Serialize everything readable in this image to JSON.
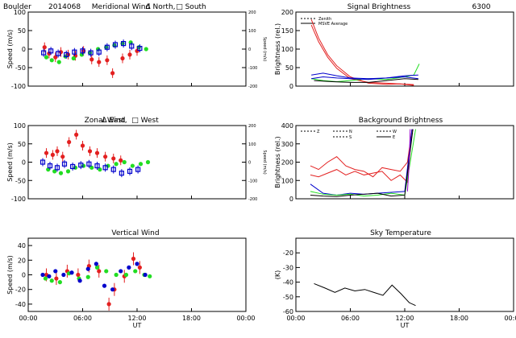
{
  "header": {
    "station": "Boulder",
    "date": "2014068"
  },
  "colors": {
    "red": "#e32020",
    "green": "#22dd22",
    "blue": "#0000cc",
    "purple": "#9900cc",
    "black": "#000000"
  },
  "chart_data": [
    {
      "id": "meridional",
      "type": "scatter",
      "title": "Meridional Wind",
      "legend": [
        "Δ North,",
        "□ South"
      ],
      "ylabel": "Speed (m/s)",
      "ylabel_right": "Speed (m/s)",
      "xlim": [
        0,
        24
      ],
      "ylim": [
        -100,
        100
      ],
      "yticks": [
        -100,
        -50,
        0,
        50,
        100
      ],
      "yticks_right": [
        "200",
        "100",
        "0",
        "-100",
        "-200"
      ],
      "xticks": [
        "00:00",
        "06:00",
        "12:00",
        "18:00",
        "00:00"
      ],
      "series": [
        {
          "color": "red",
          "marker": "circle",
          "err": 6,
          "x": [
            1.8,
            2.3,
            3.0,
            3.6,
            4.4,
            5.2,
            6.1,
            7.0,
            7.8,
            8.7,
            9.3,
            10.4,
            11.2,
            12.0
          ],
          "y": [
            5,
            -12,
            -22,
            -8,
            -15,
            -18,
            -5,
            -28,
            -35,
            -30,
            -65,
            -25,
            -15,
            -5
          ]
        },
        {
          "color": "green",
          "marker": "circle",
          "err": 0,
          "x": [
            2.0,
            2.6,
            3.4,
            4.1,
            5.0,
            5.9,
            6.8,
            7.7,
            8.6,
            9.5,
            10.4,
            11.3,
            12.2,
            13.0
          ],
          "y": [
            -22,
            -30,
            -35,
            -20,
            -25,
            -15,
            -10,
            0,
            5,
            10,
            15,
            18,
            5,
            0
          ]
        },
        {
          "color": "blue",
          "marker": "square",
          "err": 5,
          "x": [
            1.7,
            2.5,
            3.3,
            4.2,
            5.1,
            6.0,
            6.9,
            7.8,
            8.7,
            9.6,
            10.5,
            11.4,
            12.3
          ],
          "y": [
            -10,
            -5,
            -12,
            -15,
            -8,
            -5,
            -10,
            -8,
            5,
            12,
            15,
            8,
            2
          ]
        }
      ]
    },
    {
      "id": "zonal",
      "type": "scatter",
      "title": "Zonal Wind",
      "legend": [
        "Δ East,",
        "□ West"
      ],
      "ylabel": "Speed (m/s)",
      "ylabel_right": "Speed (m/s)",
      "xlim": [
        0,
        24
      ],
      "ylim": [
        -100,
        100
      ],
      "yticks": [
        -100,
        -50,
        0,
        50,
        100
      ],
      "yticks_right": [
        "200",
        "100",
        "0",
        "-100",
        "-200"
      ],
      "xticks": [
        "00:00",
        "06:00",
        "12:00",
        "18:00",
        "00:00"
      ],
      "series": [
        {
          "color": "red",
          "marker": "circle",
          "err": 6,
          "x": [
            2.0,
            2.7,
            3.2,
            3.8,
            4.5,
            5.3,
            6.0,
            6.8,
            7.6,
            8.5,
            9.4,
            10.2
          ],
          "y": [
            25,
            20,
            30,
            15,
            55,
            75,
            45,
            30,
            25,
            15,
            10,
            5
          ]
        },
        {
          "color": "green",
          "marker": "circle",
          "err": 0,
          "x": [
            2.2,
            2.9,
            3.6,
            4.4,
            5.2,
            6.1,
            7.0,
            7.9,
            8.8,
            9.7,
            10.6,
            11.5,
            12.4,
            13.2
          ],
          "y": [
            -20,
            -25,
            -30,
            -25,
            -15,
            -10,
            -15,
            -20,
            -10,
            -5,
            0,
            -10,
            -5,
            0
          ]
        },
        {
          "color": "blue",
          "marker": "square",
          "err": 5,
          "x": [
            1.6,
            2.4,
            3.2,
            4.0,
            4.9,
            5.8,
            6.7,
            7.6,
            8.5,
            9.4,
            10.3,
            11.2,
            12.1
          ],
          "y": [
            0,
            -10,
            -15,
            -5,
            -12,
            -8,
            -5,
            -10,
            -15,
            -20,
            -30,
            -25,
            -20
          ]
        }
      ]
    },
    {
      "id": "vertical",
      "type": "scatter",
      "title": "Vertical Wind",
      "ylabel": "Speed (m/s)",
      "xlim": [
        0,
        24
      ],
      "ylim": [
        -50,
        50
      ],
      "yticks": [
        -40,
        -20,
        0,
        20,
        40
      ],
      "xlabel": "UT",
      "xticks": [
        "00:00",
        "06:00",
        "12:00",
        "18:00",
        "00:00"
      ],
      "series": [
        {
          "color": "red",
          "marker": "circle",
          "err": 8,
          "x": [
            2.0,
            3.1,
            4.3,
            5.5,
            6.7,
            7.8,
            8.9,
            9.5,
            10.6,
            11.6,
            12.3
          ],
          "y": [
            0,
            -5,
            5,
            0,
            12,
            5,
            -40,
            -20,
            -2,
            22,
            10
          ]
        },
        {
          "color": "green",
          "marker": "circle",
          "err": 0,
          "x": [
            1.9,
            2.6,
            3.5,
            4.5,
            5.6,
            6.6,
            7.6,
            8.6,
            9.7,
            10.8,
            11.8,
            12.8,
            13.4
          ],
          "y": [
            -5,
            -8,
            -10,
            2,
            -5,
            -3,
            10,
            5,
            0,
            0,
            5,
            0,
            -2
          ]
        },
        {
          "color": "blue",
          "marker": "circle",
          "err": 0,
          "x": [
            1.6,
            2.3,
            3.0,
            3.9,
            4.8,
            5.7,
            6.6,
            7.5,
            8.4,
            9.3,
            10.2,
            11.1,
            12.0,
            12.9
          ],
          "y": [
            0,
            -2,
            5,
            0,
            3,
            -8,
            8,
            15,
            -15,
            -20,
            5,
            10,
            15,
            0
          ]
        }
      ]
    },
    {
      "id": "signal",
      "type": "line",
      "title": "Signal Brightness",
      "title_note": "6300",
      "legend": [
        "Zenith",
        "MSVE Average"
      ],
      "ylabel": "Brightness (rel.)",
      "xlim": [
        0,
        24
      ],
      "ylim": [
        0,
        200
      ],
      "yticks": [
        0,
        50,
        100,
        150,
        200
      ],
      "xticks": [
        "00:00",
        "06:00",
        "12:00",
        "18:00",
        "00:00"
      ],
      "series": [
        {
          "color": "red",
          "x": [
            1.7,
            2.5,
            3.5,
            4.5,
            6,
            8,
            10,
            11.5,
            13
          ],
          "y": [
            180,
            130,
            85,
            55,
            25,
            8,
            5,
            6,
            2
          ]
        },
        {
          "color": "red",
          "x": [
            1.7,
            2.5,
            3.5,
            4.5,
            6,
            8,
            10,
            11.5,
            13
          ],
          "y": [
            165,
            120,
            78,
            48,
            20,
            10,
            8,
            6,
            4
          ]
        },
        {
          "color": "green",
          "x": [
            1.7,
            3,
            4.5,
            6,
            8,
            10,
            12,
            13,
            13.6
          ],
          "y": [
            20,
            15,
            12,
            15,
            20,
            18,
            25,
            30,
            60
          ]
        },
        {
          "color": "blue",
          "x": [
            1.7,
            3,
            4.5,
            6,
            8,
            10,
            12,
            13.5
          ],
          "y": [
            30,
            35,
            28,
            22,
            20,
            22,
            28,
            30
          ]
        },
        {
          "color": "blue",
          "x": [
            1.7,
            3,
            4.5,
            6,
            8,
            10,
            12,
            13.5
          ],
          "y": [
            20,
            25,
            22,
            20,
            18,
            22,
            25,
            20
          ]
        },
        {
          "color": "black",
          "x": [
            2,
            4,
            6,
            8,
            10,
            12,
            13.5
          ],
          "y": [
            15,
            12,
            10,
            10,
            15,
            20,
            18
          ]
        }
      ]
    },
    {
      "id": "background",
      "type": "line",
      "title": "Background Brightness",
      "legend": [
        "Z",
        "N",
        "S",
        "W",
        "E"
      ],
      "ylabel": "Brightness (rel.)",
      "xlim": [
        0,
        24
      ],
      "ylim": [
        0,
        400
      ],
      "yticks": [
        0,
        100,
        200,
        300,
        400
      ],
      "xticks": [
        "00:00",
        "06:00",
        "12:00",
        "18:00",
        "00:00"
      ],
      "series": [
        {
          "color": "red",
          "x": [
            1.6,
            2.5,
            3.5,
            4.5,
            5.5,
            6.5,
            7.5,
            8.5,
            9.5,
            10.5,
            11.5,
            12.3,
            12.8
          ],
          "y": [
            180,
            160,
            200,
            230,
            180,
            160,
            150,
            120,
            170,
            160,
            150,
            200,
            380
          ]
        },
        {
          "color": "red",
          "x": [
            1.6,
            2.5,
            3.5,
            4.5,
            5.5,
            6.5,
            7.5,
            8.5,
            9.5,
            10.5,
            11.5,
            12.3,
            12.8
          ],
          "y": [
            130,
            120,
            140,
            160,
            130,
            150,
            130,
            140,
            150,
            100,
            130,
            90,
            380
          ]
        },
        {
          "color": "blue",
          "x": [
            1.6,
            3,
            4.5,
            6,
            7.5,
            9,
            10.5,
            12,
            12.8
          ],
          "y": [
            80,
            30,
            20,
            30,
            25,
            30,
            35,
            40,
            380
          ]
        },
        {
          "color": "green",
          "x": [
            1.6,
            3,
            4.5,
            6,
            7.5,
            9,
            10.5,
            12,
            13.2
          ],
          "y": [
            40,
            25,
            20,
            25,
            15,
            20,
            30,
            20,
            380
          ]
        },
        {
          "color": "black",
          "x": [
            1.6,
            3,
            4.5,
            6,
            7.5,
            9,
            10.5,
            12,
            12.9
          ],
          "y": [
            20,
            15,
            12,
            20,
            25,
            30,
            15,
            20,
            380
          ]
        },
        {
          "color": "purple",
          "x": [
            12.3,
            12.5,
            12.6
          ],
          "y": [
            40,
            200,
            380
          ]
        }
      ]
    },
    {
      "id": "sky",
      "type": "line",
      "title": "Sky Temperature",
      "ylabel": "(K)",
      "xlabel": "UT",
      "xlim": [
        0,
        24
      ],
      "ylim": [
        -60,
        -10
      ],
      "yticks": [
        -60,
        -50,
        -40,
        -30,
        -20
      ],
      "xticks": [
        "00:00",
        "06:00",
        "12:00",
        "18:00",
        "00:00"
      ],
      "series": [
        {
          "color": "black",
          "x": [
            2,
            3.2,
            4.3,
            5.4,
            6.5,
            7.6,
            8.6,
            9.6,
            10.6,
            11.6,
            12.5,
            13.2
          ],
          "y": [
            -41,
            -44,
            -47,
            -44,
            -46,
            -45,
            -47,
            -49,
            -42,
            -48,
            -54,
            -56
          ]
        }
      ]
    }
  ]
}
